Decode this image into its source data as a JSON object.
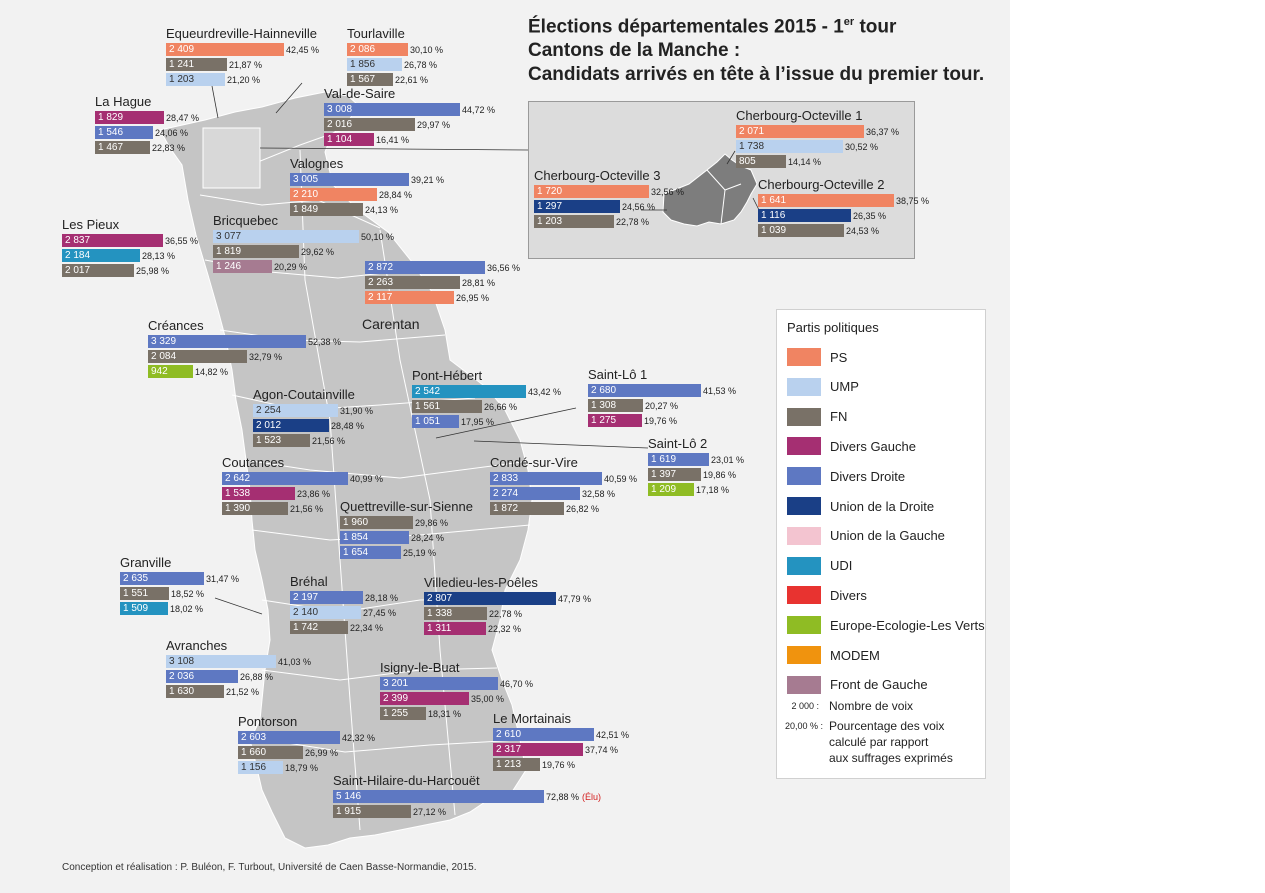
{
  "title": {
    "line1_prefix": "Élections départementales 2015 - 1",
    "line1_sup": "er",
    "line1_suffix": " tour",
    "line2": "Cantons de la Manche :",
    "line3": "Candidats arrivés en tête à l’issue du premier tour."
  },
  "colors": {
    "PS": "#f08462",
    "UMP": "#b9d1ee",
    "FN": "#797167",
    "DVG": "#a52f72",
    "DVD": "#5e78c2",
    "UD": "#1a3f86",
    "UG": "#f3c4d0",
    "UDI": "#2493c0",
    "DIV": "#e83330",
    "EELV": "#8fbc24",
    "MODEM": "#f0930e",
    "FG": "#a67b91",
    "map_land": "#c5c5c5",
    "map_background": "#f2f2f2"
  },
  "map": {
    "label_carentan": "Carentan"
  },
  "cantons": [
    {
      "name": "Equeurdreville-Hainneville",
      "rows": [
        {
          "party": "PS",
          "votes": "2 409",
          "pct": "42,45 %"
        },
        {
          "party": "FN",
          "votes": "1 241",
          "pct": "21,87 %"
        },
        {
          "party": "UMP",
          "votes": "1 203",
          "pct": "21,20 %"
        }
      ]
    },
    {
      "name": "Tourlaville",
      "rows": [
        {
          "party": "PS",
          "votes": "2 086",
          "pct": "30,10 %"
        },
        {
          "party": "UMP",
          "votes": "1 856",
          "pct": "26,78 %"
        },
        {
          "party": "FN",
          "votes": "1 567",
          "pct": "22,61 %"
        }
      ]
    },
    {
      "name": "La Hague",
      "rows": [
        {
          "party": "DVG",
          "votes": "1 829",
          "pct": "28,47 %"
        },
        {
          "party": "DVD",
          "votes": "1 546",
          "pct": "24,06 %"
        },
        {
          "party": "FN",
          "votes": "1 467",
          "pct": "22,83 %"
        }
      ]
    },
    {
      "name": "Val-de-Saire",
      "rows": [
        {
          "party": "DVD",
          "votes": "3 008",
          "pct": "44,72 %"
        },
        {
          "party": "FN",
          "votes": "2 016",
          "pct": "29,97 %"
        },
        {
          "party": "DVG",
          "votes": "1 104",
          "pct": "16,41 %"
        }
      ]
    },
    {
      "name": "Valognes",
      "rows": [
        {
          "party": "DVD",
          "votes": "3 005",
          "pct": "39,21 %"
        },
        {
          "party": "PS",
          "votes": "2 210",
          "pct": "28,84 %"
        },
        {
          "party": "FN",
          "votes": "1 849",
          "pct": "24,13 %"
        }
      ]
    },
    {
      "name": "Les Pieux",
      "rows": [
        {
          "party": "DVG",
          "votes": "2 837",
          "pct": "36,55 %"
        },
        {
          "party": "UDI",
          "votes": "2 184",
          "pct": "28,13 %"
        },
        {
          "party": "FN",
          "votes": "2 017",
          "pct": "25,98 %"
        }
      ]
    },
    {
      "name": "Bricquebec",
      "rows": [
        {
          "party": "UMP",
          "votes": "3 077",
          "pct": "50,10 %"
        },
        {
          "party": "FN",
          "votes": "1 819",
          "pct": "29,62 %"
        },
        {
          "party": "FG",
          "votes": "1 246",
          "pct": "20,29 %"
        }
      ]
    },
    {
      "name": "",
      "rows": [
        {
          "party": "DVD",
          "votes": "2 872",
          "pct": "36,56 %"
        },
        {
          "party": "FN",
          "votes": "2 263",
          "pct": "28,81 %"
        },
        {
          "party": "PS",
          "votes": "2 117",
          "pct": "26,95 %"
        }
      ]
    },
    {
      "name": "Créances",
      "rows": [
        {
          "party": "DVD",
          "votes": "3 329",
          "pct": "52,38 %"
        },
        {
          "party": "FN",
          "votes": "2 084",
          "pct": "32,79 %"
        },
        {
          "party": "EELV",
          "votes": "942",
          "pct": "14,82 %"
        }
      ]
    },
    {
      "name": "Pont-Hébert",
      "rows": [
        {
          "party": "UDI",
          "votes": "2 542",
          "pct": "43,42 %"
        },
        {
          "party": "FN",
          "votes": "1 561",
          "pct": "26,66 %"
        },
        {
          "party": "DVD",
          "votes": "1 051",
          "pct": "17,95 %"
        }
      ]
    },
    {
      "name": "Saint-Lô 1",
      "rows": [
        {
          "party": "DVD",
          "votes": "2 680",
          "pct": "41,53 %"
        },
        {
          "party": "FN",
          "votes": "1 308",
          "pct": "20,27 %"
        },
        {
          "party": "DVG",
          "votes": "1 275",
          "pct": "19,76 %"
        }
      ]
    },
    {
      "name": "Agon-Coutainville",
      "rows": [
        {
          "party": "UMP",
          "votes": "2 254",
          "pct": "31,90 %"
        },
        {
          "party": "UD",
          "votes": "2 012",
          "pct": "28,48 %"
        },
        {
          "party": "FN",
          "votes": "1 523",
          "pct": "21,56 %"
        }
      ]
    },
    {
      "name": "Saint-Lô 2",
      "rows": [
        {
          "party": "DVD",
          "votes": "1 619",
          "pct": "23,01 %"
        },
        {
          "party": "FN",
          "votes": "1 397",
          "pct": "19,86 %"
        },
        {
          "party": "EELV",
          "votes": "1 209",
          "pct": "17,18 %"
        }
      ]
    },
    {
      "name": "Coutances",
      "rows": [
        {
          "party": "DVD",
          "votes": "2 642",
          "pct": "40,99 %"
        },
        {
          "party": "DVG",
          "votes": "1 538",
          "pct": "23,86 %"
        },
        {
          "party": "FN",
          "votes": "1 390",
          "pct": "21,56 %"
        }
      ]
    },
    {
      "name": "Condé-sur-Vire",
      "rows": [
        {
          "party": "DVD",
          "votes": "2 833",
          "pct": "40,59 %"
        },
        {
          "party": "DVD",
          "votes": "2 274",
          "pct": "32,58 %"
        },
        {
          "party": "FN",
          "votes": "1 872",
          "pct": "26,82 %"
        }
      ]
    },
    {
      "name": "Quettreville-sur-Sienne",
      "rows": [
        {
          "party": "FN",
          "votes": "1 960",
          "pct": "29,86 %"
        },
        {
          "party": "DVD",
          "votes": "1 854",
          "pct": "28,24 %"
        },
        {
          "party": "DVD",
          "votes": "1 654",
          "pct": "25,19 %"
        }
      ]
    },
    {
      "name": "Granville",
      "rows": [
        {
          "party": "DVD",
          "votes": "2 635",
          "pct": "31,47 %"
        },
        {
          "party": "FN",
          "votes": "1 551",
          "pct": "18,52 %"
        },
        {
          "party": "UDI",
          "votes": "1 509",
          "pct": "18,02 %"
        }
      ]
    },
    {
      "name": "Bréhal",
      "rows": [
        {
          "party": "DVD",
          "votes": "2 197",
          "pct": "28,18 %"
        },
        {
          "party": "UMP",
          "votes": "2 140",
          "pct": "27,45 %"
        },
        {
          "party": "FN",
          "votes": "1 742",
          "pct": "22,34 %"
        }
      ]
    },
    {
      "name": "Villedieu-les-Poêles",
      "rows": [
        {
          "party": "UD",
          "votes": "2 807",
          "pct": "47,79 %"
        },
        {
          "party": "FN",
          "votes": "1 338",
          "pct": "22,78 %"
        },
        {
          "party": "DVG",
          "votes": "1 311",
          "pct": "22,32 %"
        }
      ]
    },
    {
      "name": "Avranches",
      "rows": [
        {
          "party": "UMP",
          "votes": "3 108",
          "pct": "41,03 %"
        },
        {
          "party": "DVD",
          "votes": "2 036",
          "pct": "26,88 %"
        },
        {
          "party": "FN",
          "votes": "1 630",
          "pct": "21,52 %"
        }
      ]
    },
    {
      "name": "Isigny-le-Buat",
      "rows": [
        {
          "party": "DVD",
          "votes": "3 201",
          "pct": "46,70 %"
        },
        {
          "party": "DVG",
          "votes": "2 399",
          "pct": "35,00 %"
        },
        {
          "party": "FN",
          "votes": "1 255",
          "pct": "18,31 %"
        }
      ]
    },
    {
      "name": "Pontorson",
      "rows": [
        {
          "party": "DVD",
          "votes": "2 603",
          "pct": "42,32 %"
        },
        {
          "party": "FN",
          "votes": "1 660",
          "pct": "26,99 %"
        },
        {
          "party": "UMP",
          "votes": "1 156",
          "pct": "18,79 %"
        }
      ]
    },
    {
      "name": "Le Mortainais",
      "rows": [
        {
          "party": "DVD",
          "votes": "2 610",
          "pct": "42,51 %"
        },
        {
          "party": "DVG",
          "votes": "2 317",
          "pct": "37,74 %"
        },
        {
          "party": "FN",
          "votes": "1 213",
          "pct": "19,76 %"
        }
      ]
    },
    {
      "name": "Saint-Hilaire-du-Harcouët",
      "rows": [
        {
          "party": "DVD",
          "votes": "5 146",
          "pct": "72,88 %",
          "note": "(Élu)"
        },
        {
          "party": "FN",
          "votes": "1 915",
          "pct": "27,12 %"
        }
      ]
    },
    {
      "name": "Cherbourg-Octeville 1",
      "rows": [
        {
          "party": "PS",
          "votes": "2 071",
          "pct": "36,37 %"
        },
        {
          "party": "UMP",
          "votes": "1 738",
          "pct": "30,52 %"
        },
        {
          "party": "FN",
          "votes": "805",
          "pct": "14,14 %"
        }
      ]
    },
    {
      "name": "Cherbourg-Octeville 3",
      "rows": [
        {
          "party": "PS",
          "votes": "1 720",
          "pct": "32,56 %"
        },
        {
          "party": "UD",
          "votes": "1 297",
          "pct": "24,56 %"
        },
        {
          "party": "FN",
          "votes": "1 203",
          "pct": "22,78 %"
        }
      ]
    },
    {
      "name": "Cherbourg-Octeville 2",
      "rows": [
        {
          "party": "PS",
          "votes": "1 641",
          "pct": "38,75 %"
        },
        {
          "party": "UD",
          "votes": "1 116",
          "pct": "26,35 %"
        },
        {
          "party": "FN",
          "votes": "1 039",
          "pct": "24,53 %"
        }
      ]
    }
  ],
  "legend": {
    "title": "Partis politiques",
    "items": [
      {
        "party": "PS",
        "label": "PS"
      },
      {
        "party": "UMP",
        "label": "UMP"
      },
      {
        "party": "FN",
        "label": "FN"
      },
      {
        "party": "DVG",
        "label": "Divers Gauche"
      },
      {
        "party": "DVD",
        "label": "Divers Droite"
      },
      {
        "party": "UD",
        "label": "Union de la Droite"
      },
      {
        "party": "UG",
        "label": "Union de la Gauche"
      },
      {
        "party": "UDI",
        "label": "UDI"
      },
      {
        "party": "DIV",
        "label": "Divers"
      },
      {
        "party": "EELV",
        "label": "Europe-Ecologie-Les Verts"
      },
      {
        "party": "MODEM",
        "label": "MODEM"
      },
      {
        "party": "FG",
        "label": "Front de Gauche"
      }
    ],
    "votes_example": "2 000 :",
    "votes_label": "Nombre de voix",
    "pct_example": "20,00 % :",
    "pct_label_1": "Pourcentage des voix",
    "pct_label_2": "calculé par rapport",
    "pct_label_3": "aux suffrages exprimés"
  },
  "credit": "Conception et réalisation : P. Buléon, F. Turbout, Université de Caen Basse-Normandie, 2015."
}
